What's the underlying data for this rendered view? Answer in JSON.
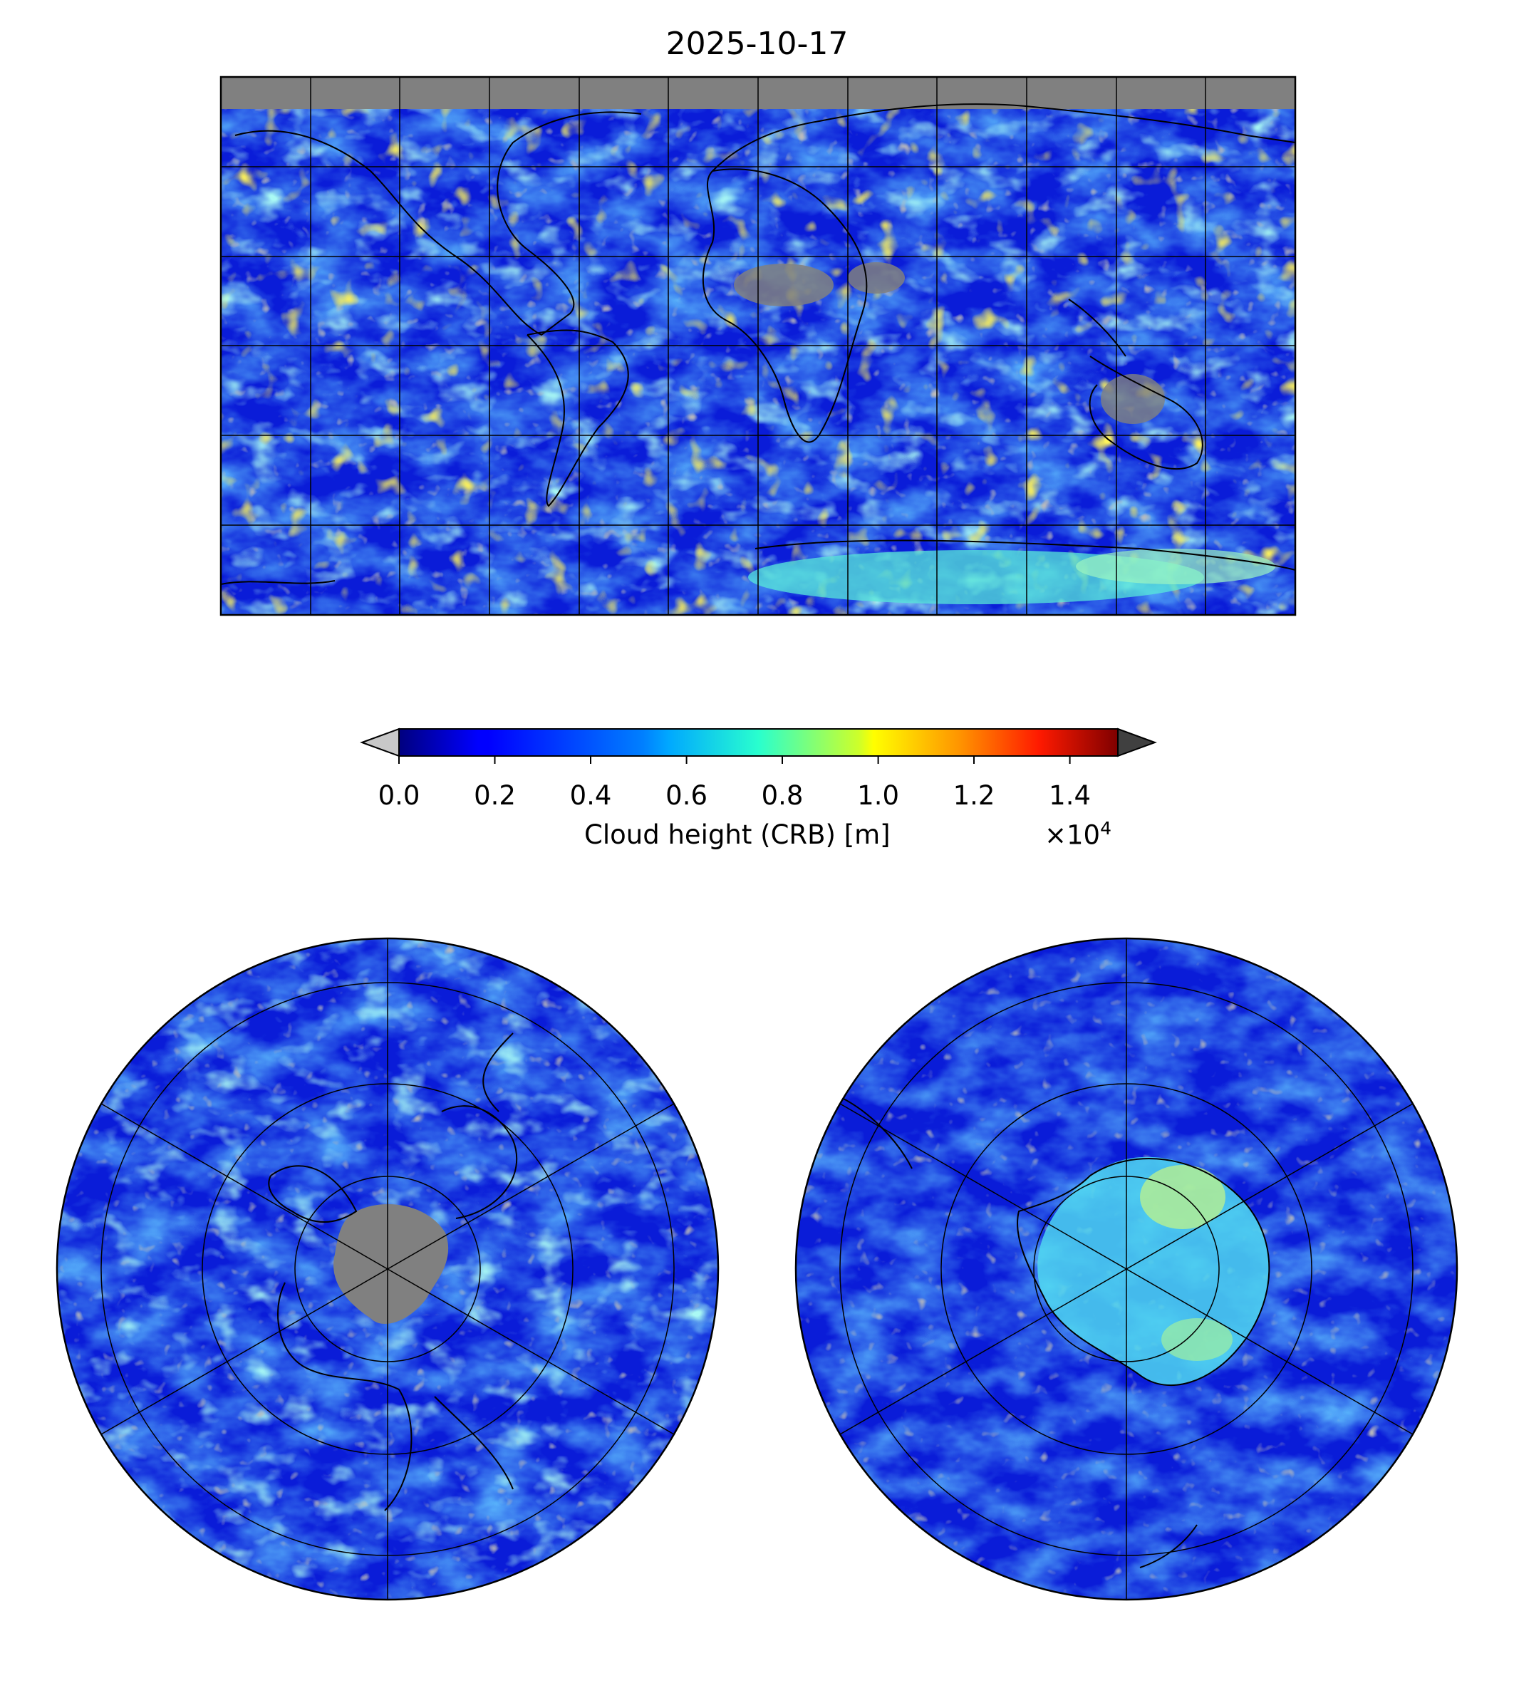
{
  "figure": {
    "title": "2025-10-17",
    "panels": [
      "global-map",
      "north-polar-map",
      "south-polar-map"
    ]
  },
  "colorbar": {
    "label": "Cloud height (CRB) [m]",
    "multiplier_base": "×10",
    "multiplier_exp": "4",
    "ticks": [
      "0.0",
      "0.2",
      "0.4",
      "0.6",
      "0.8",
      "1.0",
      "1.2",
      "1.4"
    ],
    "tick_values": [
      0.0,
      0.2,
      0.4,
      0.6,
      0.8,
      1.0,
      1.2,
      1.4
    ],
    "range": [
      0.0,
      1.5
    ],
    "colormap": "jet",
    "under_color": "#c8c8c8",
    "over_color": "#404040",
    "missing_color": "#808080"
  },
  "colors": {
    "ocean_clear": "#0a14d2",
    "low_cloud": "#1e64ff",
    "mid_cloud": "#32c8ff",
    "high_cloud": "#ffd200",
    "no_data": "#808080",
    "coast": "#000000",
    "grid": "#000000"
  }
}
